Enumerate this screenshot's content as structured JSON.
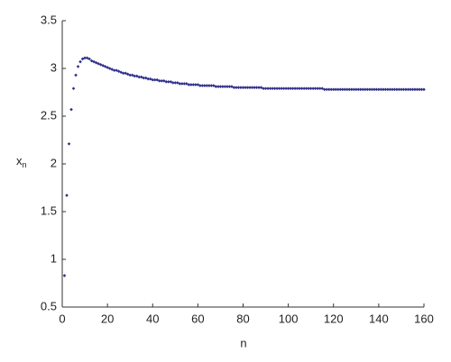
{
  "chart_data": {
    "type": "scatter",
    "xlabel": "n",
    "ylabel": "x",
    "ylabel_subscript": "n",
    "color": "#2e2e8a",
    "xlim": [
      0,
      160
    ],
    "xticks": [
      0,
      20,
      40,
      60,
      80,
      100,
      120,
      140,
      160
    ],
    "ylim": [
      0.5,
      3.5
    ],
    "yticks": [
      0.5,
      1,
      1.5,
      2,
      2.5,
      3,
      3.5
    ],
    "x": [
      1,
      2,
      3,
      4,
      5,
      6,
      7,
      8,
      9,
      10,
      11,
      12,
      13,
      14,
      15,
      16,
      17,
      18,
      19,
      20,
      21,
      22,
      23,
      24,
      25,
      26,
      27,
      28,
      29,
      30,
      31,
      32,
      33,
      34,
      35,
      36,
      37,
      38,
      39,
      40,
      41,
      42,
      43,
      44,
      45,
      46,
      47,
      48,
      49,
      50,
      51,
      52,
      53,
      54,
      55,
      56,
      57,
      58,
      59,
      60,
      61,
      62,
      63,
      64,
      65,
      66,
      67,
      68,
      69,
      70,
      71,
      72,
      73,
      74,
      75,
      76,
      77,
      78,
      79,
      80,
      81,
      82,
      83,
      84,
      85,
      86,
      87,
      88,
      89,
      90,
      91,
      92,
      93,
      94,
      95,
      96,
      97,
      98,
      99,
      100,
      101,
      102,
      103,
      104,
      105,
      106,
      107,
      108,
      109,
      110,
      111,
      112,
      113,
      114,
      115,
      116,
      117,
      118,
      119,
      120,
      121,
      122,
      123,
      124,
      125,
      126,
      127,
      128,
      129,
      130,
      131,
      132,
      133,
      134,
      135,
      136,
      137,
      138,
      139,
      140,
      141,
      142,
      143,
      144,
      145,
      146,
      147,
      148,
      149,
      150,
      151,
      152,
      153,
      154,
      155,
      156,
      157,
      158,
      159,
      160
    ],
    "values": [
      0.83,
      1.67,
      2.21,
      2.57,
      2.79,
      2.93,
      3.02,
      3.07,
      3.1,
      3.11,
      3.11,
      3.1,
      3.08,
      3.07,
      3.06,
      3.05,
      3.04,
      3.03,
      3.02,
      3.01,
      3.0,
      2.99,
      2.98,
      2.98,
      2.97,
      2.96,
      2.95,
      2.95,
      2.94,
      2.93,
      2.93,
      2.92,
      2.92,
      2.91,
      2.91,
      2.9,
      2.9,
      2.89,
      2.89,
      2.88,
      2.88,
      2.88,
      2.87,
      2.87,
      2.87,
      2.86,
      2.86,
      2.86,
      2.85,
      2.85,
      2.85,
      2.84,
      2.84,
      2.84,
      2.84,
      2.83,
      2.83,
      2.83,
      2.83,
      2.83,
      2.82,
      2.82,
      2.82,
      2.82,
      2.82,
      2.82,
      2.82,
      2.81,
      2.81,
      2.81,
      2.81,
      2.81,
      2.81,
      2.81,
      2.81,
      2.8,
      2.8,
      2.8,
      2.8,
      2.8,
      2.8,
      2.8,
      2.8,
      2.8,
      2.8,
      2.8,
      2.8,
      2.8,
      2.79,
      2.79,
      2.79,
      2.79,
      2.79,
      2.79,
      2.79,
      2.79,
      2.79,
      2.79,
      2.79,
      2.79,
      2.79,
      2.79,
      2.79,
      2.79,
      2.79,
      2.79,
      2.79,
      2.79,
      2.79,
      2.79,
      2.79,
      2.79,
      2.79,
      2.79,
      2.79,
      2.78,
      2.78,
      2.78,
      2.78,
      2.78,
      2.78,
      2.78,
      2.78,
      2.78,
      2.78,
      2.78,
      2.78,
      2.78,
      2.78,
      2.78,
      2.78,
      2.78,
      2.78,
      2.78,
      2.78,
      2.78,
      2.78,
      2.78,
      2.78,
      2.78,
      2.78,
      2.78,
      2.78,
      2.78,
      2.78,
      2.78,
      2.78,
      2.78,
      2.78,
      2.78,
      2.78,
      2.78,
      2.78,
      2.78,
      2.78,
      2.78,
      2.78,
      2.78,
      2.78,
      2.78
    ]
  }
}
